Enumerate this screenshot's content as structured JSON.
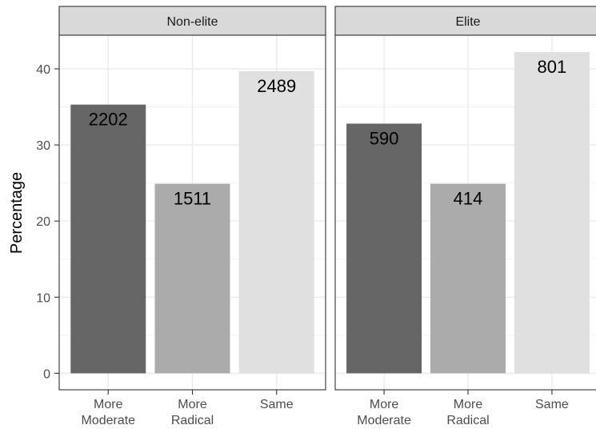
{
  "chart_data": {
    "type": "bar",
    "ylabel": "Percentage",
    "xlabel": "",
    "ylim": [
      0,
      44
    ],
    "yticks": [
      0,
      10,
      20,
      30,
      40
    ],
    "grid": true,
    "categories": [
      [
        "More",
        "Moderate"
      ],
      [
        "More",
        "Radical"
      ],
      [
        "Same"
      ]
    ],
    "colors": [
      "#666666",
      "#ababab",
      "#e0e0e0"
    ],
    "panels": [
      {
        "strip_label": "Non-elite",
        "values": [
          35.3,
          24.9,
          39.7
        ],
        "labels": [
          "2202",
          "1511",
          "2489"
        ]
      },
      {
        "strip_label": "Elite",
        "values": [
          32.8,
          24.9,
          42.2
        ],
        "labels": [
          "590",
          "414",
          "801"
        ]
      }
    ]
  }
}
